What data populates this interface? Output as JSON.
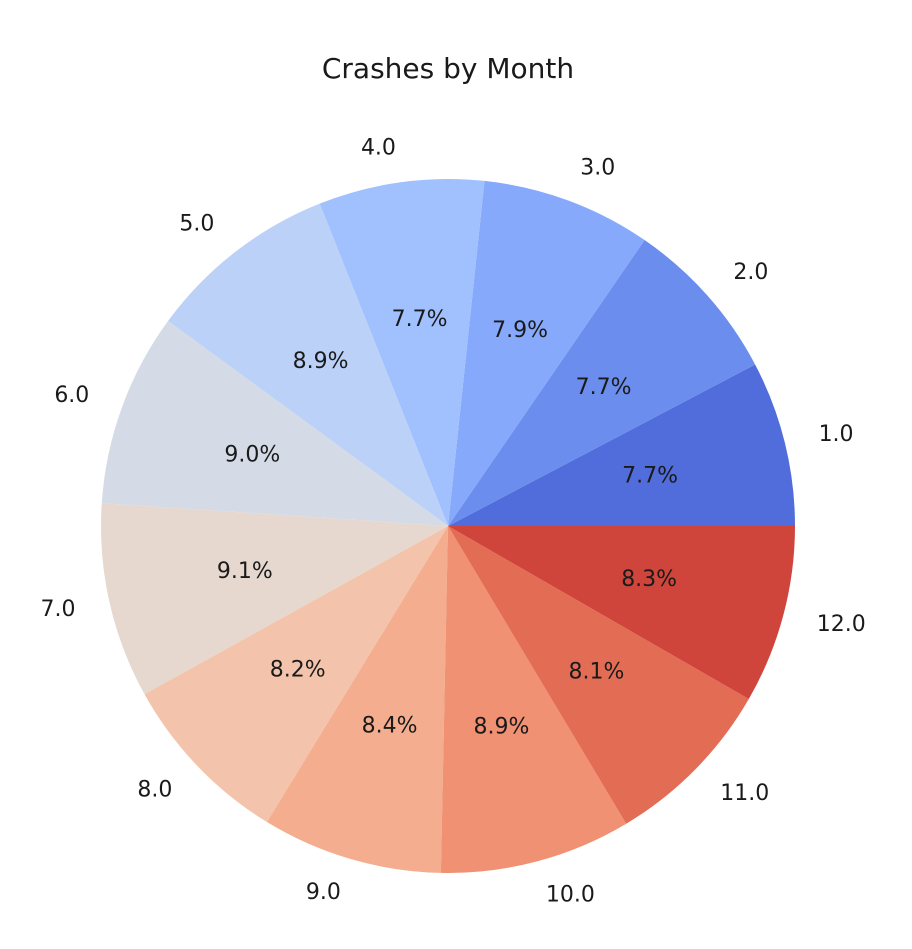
{
  "chart_data": {
    "type": "pie",
    "title": "Crashes by Month",
    "start_angle_deg": 0,
    "direction": "counterclockwise",
    "autopct_format": "%.1f%%",
    "categories": [
      "1.0",
      "2.0",
      "3.0",
      "4.0",
      "5.0",
      "6.0",
      "7.0",
      "8.0",
      "9.0",
      "10.0",
      "11.0",
      "12.0"
    ],
    "values": [
      7.7,
      7.7,
      7.9,
      7.7,
      8.9,
      9.0,
      9.1,
      8.2,
      8.4,
      8.9,
      8.1,
      8.3
    ],
    "value_labels": [
      "7.7%",
      "7.7%",
      "7.9%",
      "7.7%",
      "8.9%",
      "9.0%",
      "9.1%",
      "8.2%",
      "8.4%",
      "8.9%",
      "8.1%",
      "8.3%"
    ],
    "colors": [
      "#516ddb",
      "#6b8ded",
      "#86a9fb",
      "#a1c0fe",
      "#bbd1f8",
      "#d4dbe6",
      "#e6d8cf",
      "#f3c4ab",
      "#f4ad8e",
      "#ef9172",
      "#e36c55",
      "#cf453c"
    ],
    "legend": "none"
  }
}
